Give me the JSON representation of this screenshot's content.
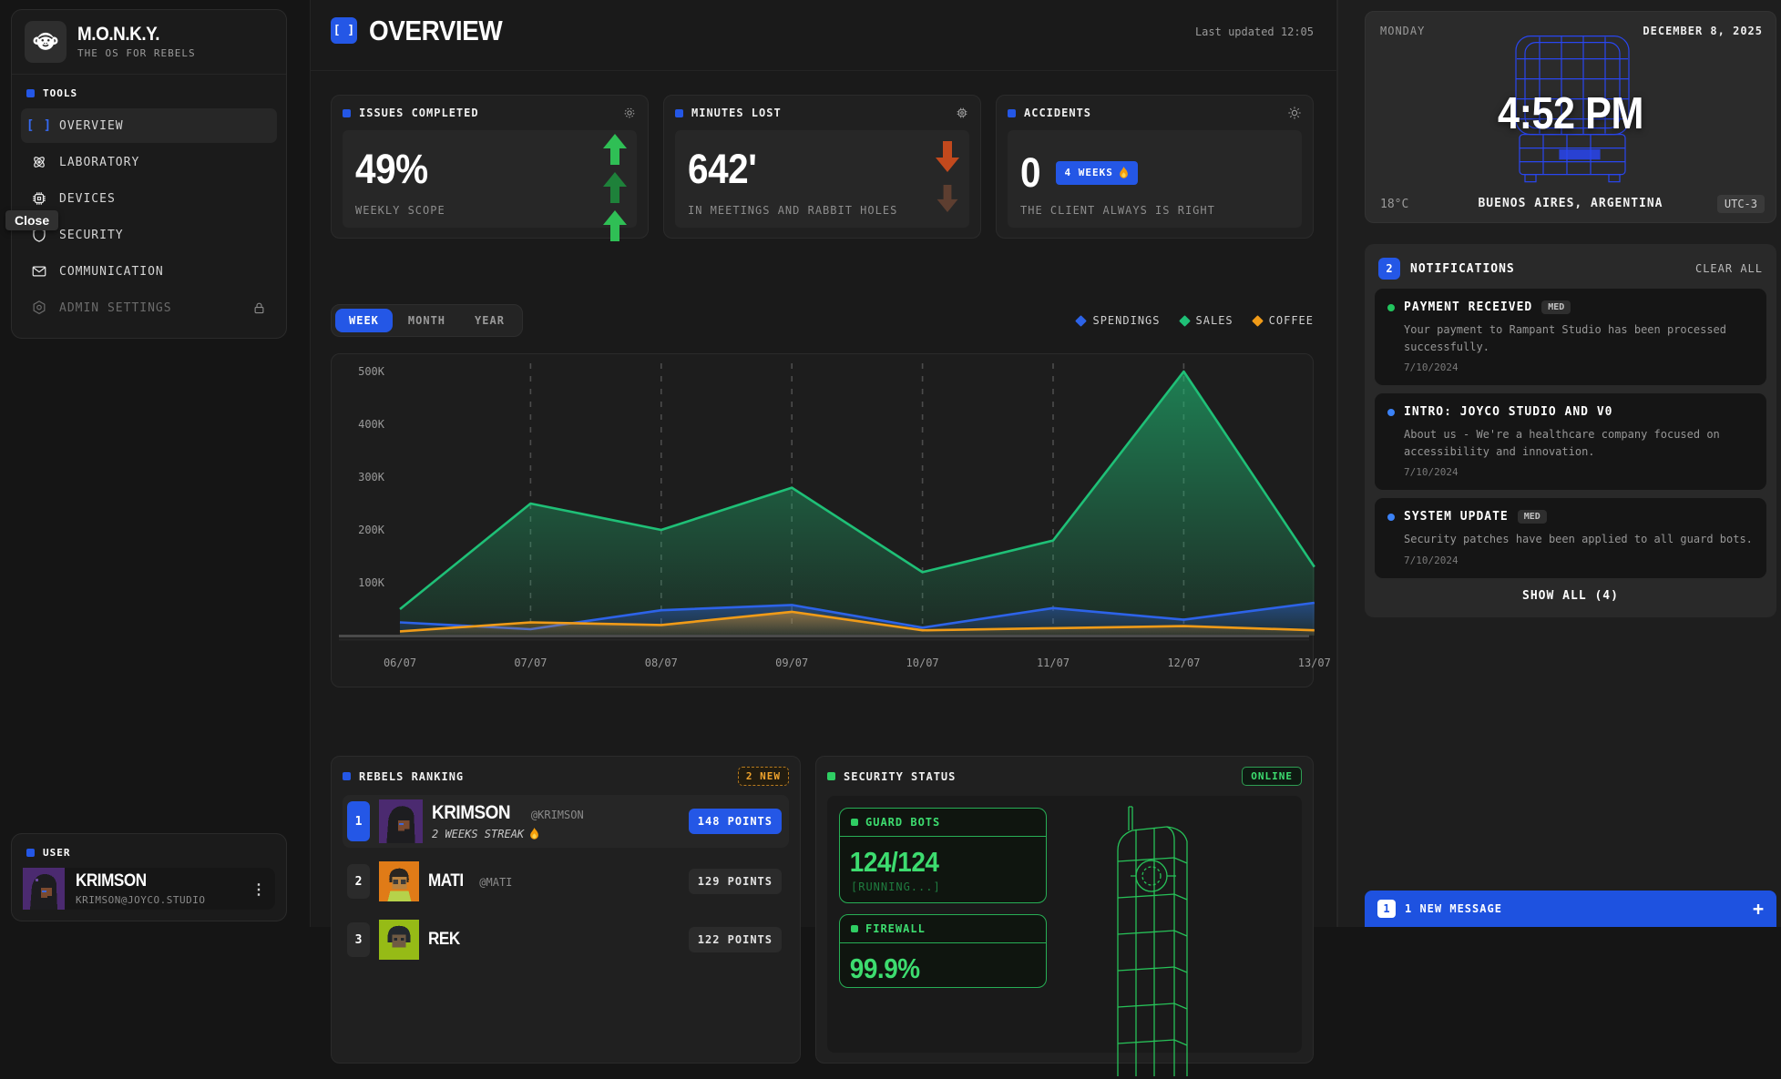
{
  "sidebar": {
    "logo": {
      "title": "M.O.N.K.Y.",
      "subtitle": "THE OS FOR REBELS"
    },
    "tools_label": "TOOLS",
    "items": [
      {
        "label": "OVERVIEW",
        "icon": "brackets-icon",
        "active": true
      },
      {
        "label": "LABORATORY",
        "icon": "atom-icon"
      },
      {
        "label": "DEVICES",
        "icon": "chip-icon"
      },
      {
        "label": "SECURITY",
        "icon": "shield-icon"
      },
      {
        "label": "COMMUNICATION",
        "icon": "envelope-icon"
      },
      {
        "label": "ADMIN SETTINGS",
        "icon": "hex-gear-icon",
        "locked": true
      }
    ],
    "tooltip": "Close",
    "user_label": "USER",
    "user": {
      "name": "KRIMSON",
      "email": "KRIMSON@JOYCO.STUDIO"
    }
  },
  "header": {
    "title": "OVERVIEW",
    "last_updated": "Last updated 12:05"
  },
  "stats": [
    {
      "title": "ISSUES COMPLETED",
      "value": "49%",
      "caption": "WEEKLY SCOPE",
      "trend": "up"
    },
    {
      "title": "MINUTES LOST",
      "value": "642'",
      "caption": "IN MEETINGS AND RABBIT HOLES",
      "trend": "down"
    },
    {
      "title": "ACCIDENTS",
      "value": "0",
      "badge": "4 WEEKS",
      "caption": "THE CLIENT ALWAYS IS RIGHT"
    }
  ],
  "tabs": {
    "items": [
      {
        "label": "WEEK",
        "active": true
      },
      {
        "label": "MONTH"
      },
      {
        "label": "YEAR"
      }
    ]
  },
  "chart_data": {
    "type": "line",
    "categories": [
      "06/07",
      "07/07",
      "08/07",
      "09/07",
      "10/07",
      "11/07",
      "12/07",
      "13/07"
    ],
    "y_ticks": [
      "500K",
      "400K",
      "300K",
      "200K",
      "100K"
    ],
    "ylim": [
      0,
      500
    ],
    "unit": "K",
    "grid": "vertical-dashed",
    "legend_position": "top-right",
    "series": [
      {
        "name": "SPENDINGS",
        "color": "#2d63e8",
        "values": [
          25,
          12,
          48,
          58,
          15,
          52,
          30,
          62
        ]
      },
      {
        "name": "SALES",
        "color": "#1fc077",
        "values": [
          50,
          250,
          200,
          280,
          120,
          180,
          500,
          130
        ]
      },
      {
        "name": "COFFEE",
        "color": "#f09b18",
        "values": [
          8,
          25,
          20,
          45,
          10,
          14,
          18,
          10
        ]
      }
    ]
  },
  "ranking": {
    "title": "REBELS RANKING",
    "new_badge": "2 NEW",
    "rows": [
      {
        "rank": "1",
        "name": "KRIMSON",
        "handle": "@KRIMSON",
        "streak": "2 WEEKS STREAK",
        "points": "148 POINTS"
      },
      {
        "rank": "2",
        "name": "MATI",
        "handle": "@MATI",
        "points": "129 POINTS"
      },
      {
        "rank": "3",
        "name": "REK",
        "handle": "",
        "points": "122 POINTS"
      }
    ]
  },
  "security": {
    "title": "SECURITY STATUS",
    "status": "ONLINE",
    "guard_bots": {
      "label": "GUARD BOTS",
      "value": "124/124",
      "status": "[RUNNING...]"
    },
    "firewall": {
      "label": "FIREWALL",
      "value": "99.9%"
    }
  },
  "clock": {
    "day": "MONDAY",
    "date": "DECEMBER 8, 2025",
    "time": "4:52 PM",
    "temperature": "18°C",
    "location": "BUENOS AIRES, ARGENTINA",
    "utc": "UTC-3"
  },
  "notifications": {
    "count": "2",
    "title": "NOTIFICATIONS",
    "clear_label": "CLEAR ALL",
    "items": [
      {
        "title": "PAYMENT RECEIVED",
        "priority": "MED",
        "dot_color": "#22c55e",
        "body": "Your payment to Rampant Studio has been processed successfully.",
        "date": "7/10/2024"
      },
      {
        "title": "INTRO: JOYCO STUDIO AND V0",
        "priority": "",
        "dot_color": "#3b82f6",
        "body": "About us - We're a healthcare company focused on accessibility and innovation.",
        "date": "7/10/2024"
      },
      {
        "title": "SYSTEM UPDATE",
        "priority": "MED",
        "dot_color": "#3b82f6",
        "body": "Security patches have been applied to all guard bots.",
        "date": "7/10/2024"
      }
    ],
    "show_all": "SHOW ALL (4)"
  },
  "message_bar": {
    "count": "1",
    "text": "1 NEW MESSAGE"
  },
  "colors": {
    "accent_blue": "#2457e6",
    "terminal_green": "#3ddc6f",
    "up_green": "#2fbf55",
    "down_orange": "#c2491d",
    "warn_orange": "#f0a32c"
  }
}
